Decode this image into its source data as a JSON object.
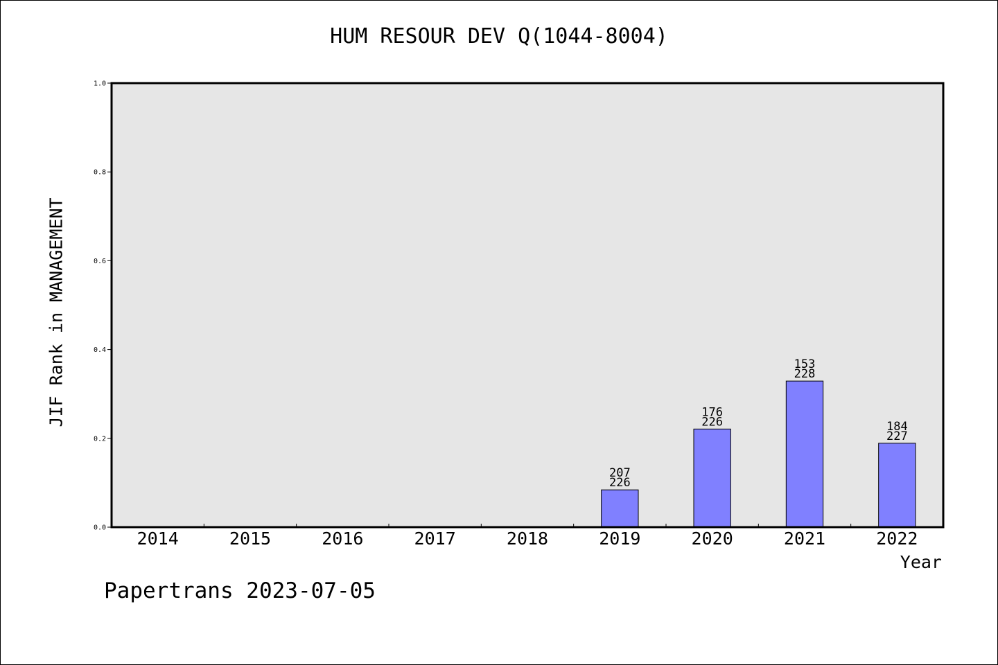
{
  "chart_data": {
    "type": "bar",
    "title": "HUM RESOUR DEV Q(1044-8004)",
    "xlabel": "Year",
    "ylabel": "JIF Rank in MANAGEMENT",
    "categories": [
      "2014",
      "2015",
      "2016",
      "2017",
      "2018",
      "2019",
      "2020",
      "2021",
      "2022"
    ],
    "values": [
      null,
      null,
      null,
      null,
      null,
      0.084,
      0.221,
      0.329,
      0.189
    ],
    "rank": [
      null,
      null,
      null,
      null,
      null,
      "207",
      "176",
      "153",
      "184"
    ],
    "total": [
      null,
      null,
      null,
      null,
      null,
      "226",
      "226",
      "228",
      "227"
    ],
    "ylim": [
      0,
      1.0
    ],
    "yticks": [
      "0.0",
      "0.2",
      "0.4",
      "0.6",
      "0.8",
      "1.0"
    ],
    "grid": false,
    "colors": {
      "bar": "#8080ff",
      "plot_bg": "#e6e6e6",
      "axis": "#000000"
    }
  },
  "footer": {
    "text": "Papertrans 2023-07-05"
  }
}
